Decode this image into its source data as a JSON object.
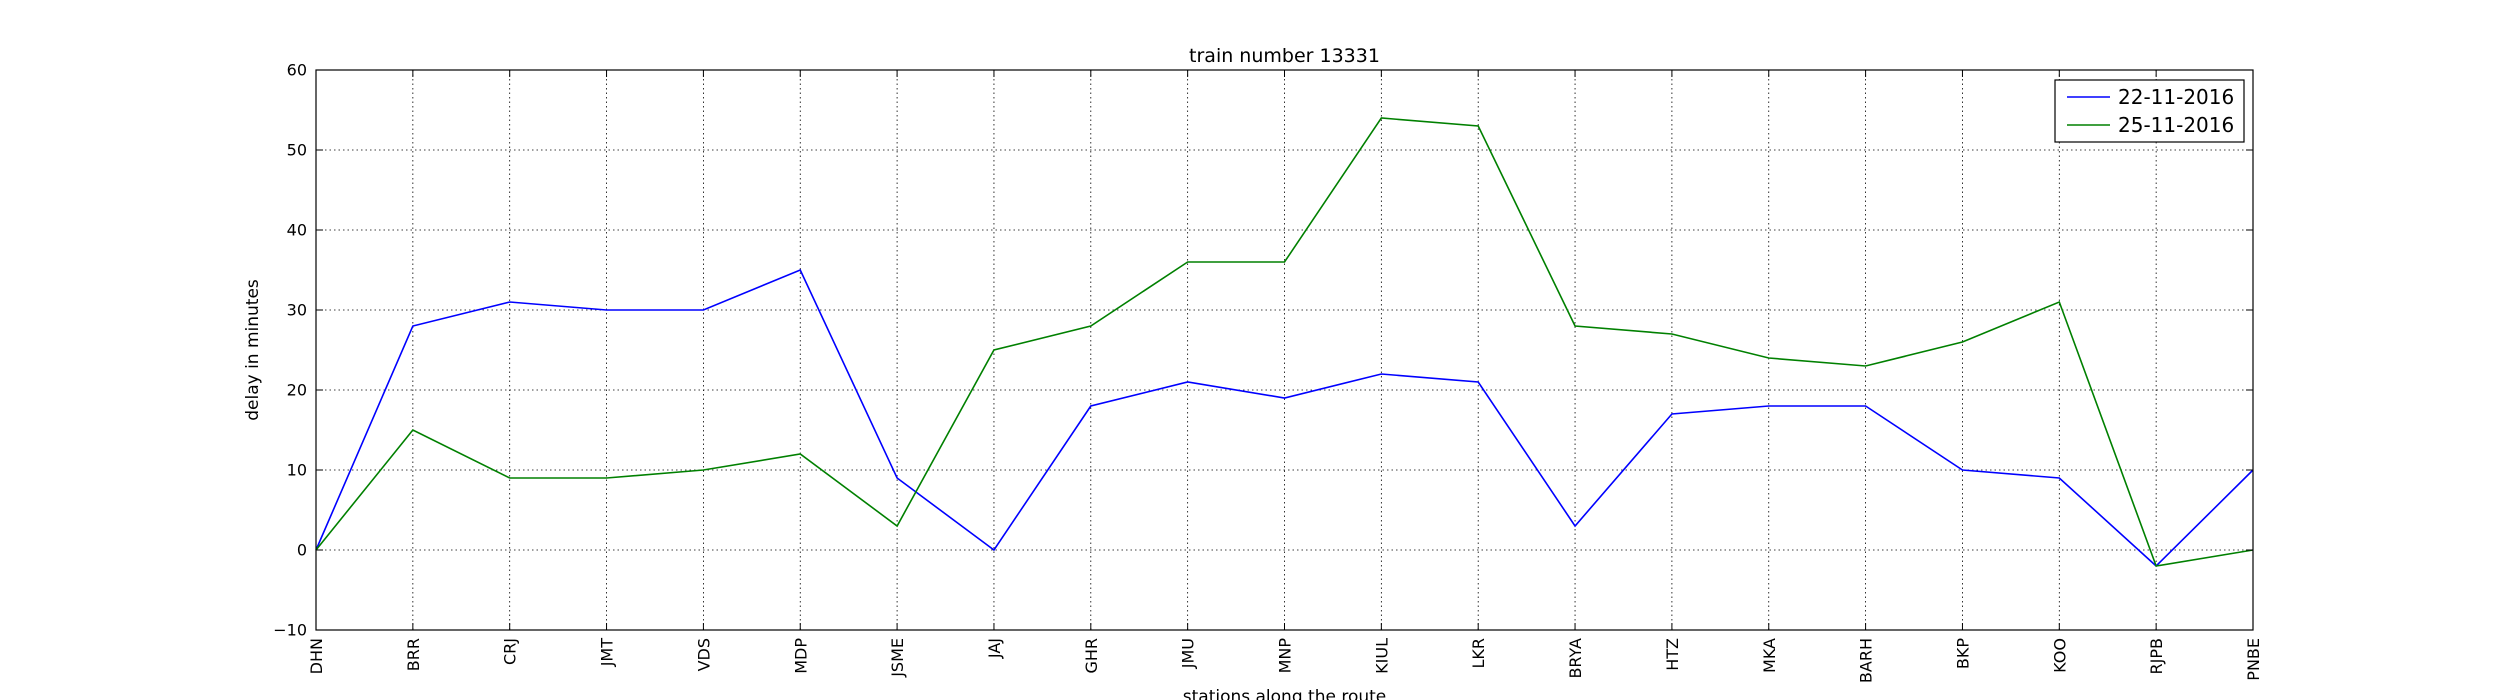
{
  "chart_data": {
    "type": "line",
    "title": "train number 13331",
    "xlabel": "stations along the route",
    "ylabel": "delay in minutes",
    "categories": [
      "DHN",
      "BRR",
      "CRJ",
      "JMT",
      "VDS",
      "MDP",
      "JSME",
      "JAJ",
      "GHR",
      "JMU",
      "MNP",
      "KIUL",
      "LKR",
      "BRYA",
      "HTZ",
      "MKA",
      "BARH",
      "BKP",
      "KOO",
      "RJPB",
      "PNBE"
    ],
    "ylim": [
      -10,
      60
    ],
    "yticks": [
      -10,
      0,
      10,
      20,
      30,
      40,
      50,
      60
    ],
    "grid": true,
    "legend_position": "top-right",
    "series": [
      {
        "name": "22-11-2016",
        "color": "#0000ff",
        "values": [
          0,
          28,
          31,
          30,
          30,
          35,
          9,
          0,
          18,
          21,
          19,
          22,
          21,
          3,
          17,
          18,
          18,
          10,
          9,
          -2,
          10
        ]
      },
      {
        "name": "25-11-2016",
        "color": "#008000",
        "values": [
          0,
          15,
          9,
          9,
          10,
          12,
          3,
          25,
          28,
          36,
          36,
          54,
          53,
          28,
          27,
          24,
          23,
          26,
          31,
          -2,
          0
        ]
      }
    ]
  }
}
